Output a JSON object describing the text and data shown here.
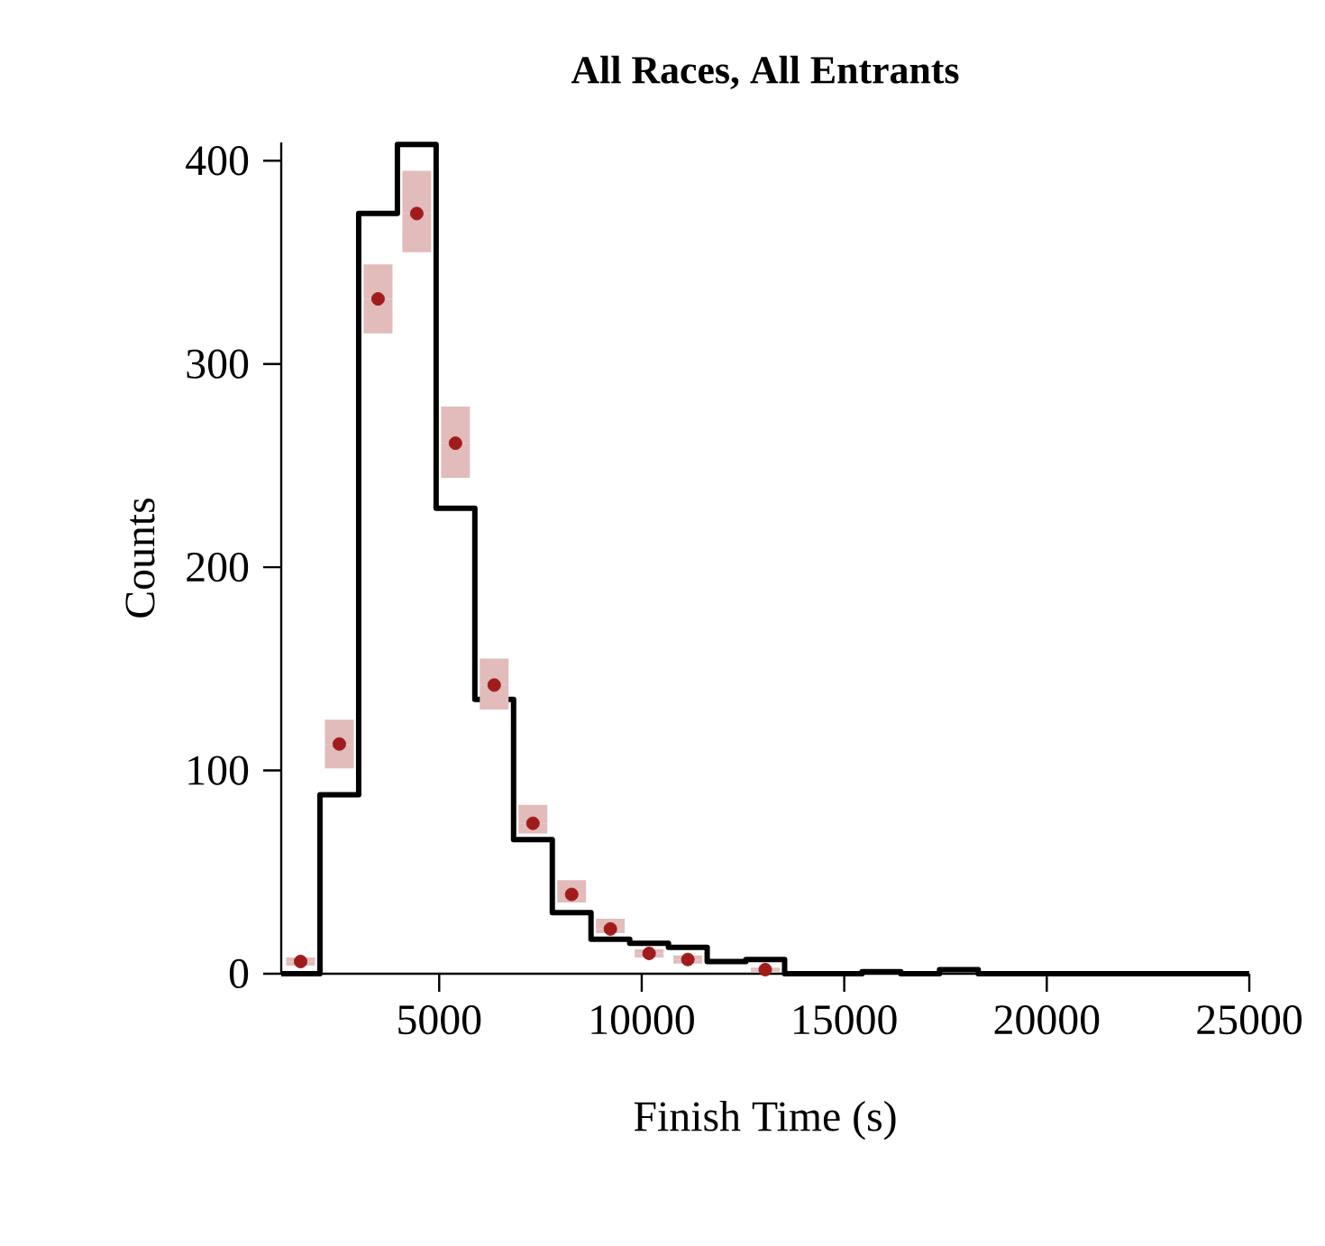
{
  "chart_data": {
    "type": "histogram",
    "title": "All Races, All Entrants",
    "xlabel": "Finish Time (s)",
    "ylabel": "Counts",
    "bins": [
      1100,
      2056,
      3012,
      3968,
      4924,
      5880,
      6836,
      7792,
      8748,
      9704,
      10660,
      11616,
      12572,
      13528,
      14484,
      15440,
      16396,
      17352,
      18308,
      19264,
      20220,
      21176,
      22132,
      23088,
      24044,
      25000
    ],
    "xlim": [
      1100,
      25000
    ],
    "ylim": [
      0,
      409
    ],
    "xticks": [
      5000,
      10000,
      15000,
      20000,
      25000
    ],
    "yticks": [
      0,
      100,
      200,
      300,
      400
    ],
    "series": [
      {
        "color": "#000000",
        "values": [
          0,
          88,
          374,
          408,
          229,
          135,
          66,
          30,
          17,
          15,
          13,
          6,
          7,
          0,
          0,
          1,
          0,
          2,
          0,
          0,
          0,
          0,
          0,
          0,
          0
        ]
      },
      {
        "type": "scatter",
        "marker": "circle",
        "color": "#a01c1c",
        "x": [
          1578,
          2534,
          3490,
          4446,
          5402,
          6358,
          7314,
          8270,
          9226,
          10182,
          11138,
          13050
        ],
        "values": [
          6,
          113,
          332,
          374,
          261,
          142,
          74,
          39,
          22,
          10,
          7,
          2
        ],
        "errors": [
          [
            4,
            8
          ],
          [
            101,
            125
          ],
          [
            315,
            349
          ],
          [
            355,
            395
          ],
          [
            244,
            279
          ],
          [
            130,
            155
          ],
          [
            69,
            83
          ],
          [
            35,
            46
          ],
          [
            20,
            27
          ],
          [
            8,
            12
          ],
          [
            5,
            9
          ],
          [
            1,
            3
          ]
        ]
      }
    ]
  }
}
